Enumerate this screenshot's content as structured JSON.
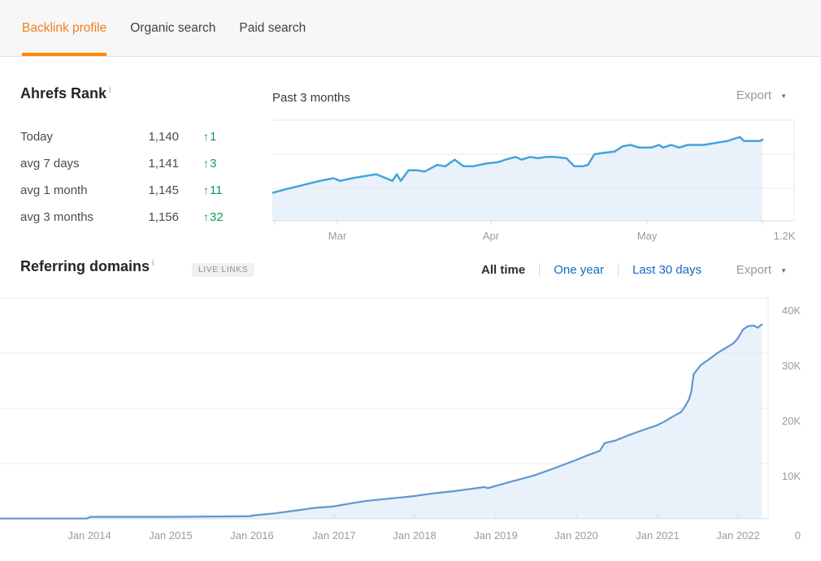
{
  "tabs": {
    "items": [
      {
        "label": "Backlink profile",
        "active": true
      },
      {
        "label": "Organic search",
        "active": false
      },
      {
        "label": "Paid search",
        "active": false
      }
    ]
  },
  "colors": {
    "accent_orange": "#ff8800",
    "active_tab_text": "#ef7f1a",
    "link_blue": "#1668c5",
    "positive_green": "#149a4e",
    "line_blue_small": "#44a3dd",
    "line_blue_large": "#6096d1",
    "area_fill": "#e9f1fa"
  },
  "ahrefs_rank": {
    "title": "Ahrefs Rank",
    "info_icon": "i",
    "rows": [
      {
        "label": "Today",
        "value": "1,140",
        "delta_arrow": "↑",
        "delta_value": "1"
      },
      {
        "label": "avg 7 days",
        "value": "1,141",
        "delta_arrow": "↑",
        "delta_value": "3"
      },
      {
        "label": "avg 1 month",
        "value": "1,145",
        "delta_arrow": "↑",
        "delta_value": "11"
      },
      {
        "label": "avg 3 months",
        "value": "1,156",
        "delta_arrow": "↑",
        "delta_value": "32"
      }
    ]
  },
  "rank_chart_header": {
    "title": "Past 3 months",
    "export_label": "Export",
    "export_caret": "▼"
  },
  "referring_domains": {
    "title": "Referring domains",
    "info_icon": "i",
    "badge": "LIVE LINKS",
    "filters": [
      {
        "label": "All time",
        "active": true
      },
      {
        "label": "One year",
        "active": false
      },
      {
        "label": "Last 30 days",
        "active": false
      }
    ],
    "export_label": "Export",
    "export_caret": "▼"
  },
  "chart_data": [
    {
      "type": "area",
      "title": "Past 3 months",
      "metric": "Ahrefs Rank (inverted axis, lower rank plotted higher)",
      "xtick_labels": [
        "Mar",
        "Apr",
        "May"
      ],
      "ytick_labels": [
        "1.2K"
      ],
      "ylim": [
        1125,
        1200
      ],
      "grid": true,
      "points_format": [
        "x_fraction_of_range",
        "rank"
      ],
      "points": [
        [
          0.0,
          1179
        ],
        [
          0.031,
          1176
        ],
        [
          0.064,
          1173
        ],
        [
          0.097,
          1170
        ],
        [
          0.125,
          1168
        ],
        [
          0.138,
          1170
        ],
        [
          0.163,
          1168
        ],
        [
          0.196,
          1166
        ],
        [
          0.212,
          1165
        ],
        [
          0.232,
          1168
        ],
        [
          0.245,
          1170
        ],
        [
          0.254,
          1165
        ],
        [
          0.262,
          1170
        ],
        [
          0.278,
          1162
        ],
        [
          0.295,
          1162
        ],
        [
          0.311,
          1163
        ],
        [
          0.336,
          1158
        ],
        [
          0.353,
          1159
        ],
        [
          0.372,
          1154
        ],
        [
          0.39,
          1159
        ],
        [
          0.41,
          1159
        ],
        [
          0.435,
          1157
        ],
        [
          0.46,
          1156
        ],
        [
          0.476,
          1154
        ],
        [
          0.496,
          1152
        ],
        [
          0.509,
          1154
        ],
        [
          0.526,
          1152
        ],
        [
          0.542,
          1153
        ],
        [
          0.558,
          1152
        ],
        [
          0.575,
          1152
        ],
        [
          0.6,
          1153
        ],
        [
          0.616,
          1159
        ],
        [
          0.633,
          1159
        ],
        [
          0.644,
          1158
        ],
        [
          0.657,
          1150
        ],
        [
          0.674,
          1149
        ],
        [
          0.698,
          1148
        ],
        [
          0.715,
          1144
        ],
        [
          0.731,
          1143
        ],
        [
          0.748,
          1145
        ],
        [
          0.773,
          1145
        ],
        [
          0.789,
          1143
        ],
        [
          0.797,
          1145
        ],
        [
          0.814,
          1143
        ],
        [
          0.83,
          1145
        ],
        [
          0.847,
          1143
        ],
        [
          0.863,
          1143
        ],
        [
          0.88,
          1143
        ],
        [
          0.896,
          1142
        ],
        [
          0.913,
          1141
        ],
        [
          0.929,
          1140
        ],
        [
          0.937,
          1139
        ],
        [
          0.954,
          1137
        ],
        [
          0.962,
          1140
        ],
        [
          0.978,
          1140
        ],
        [
          0.995,
          1140
        ],
        [
          1.0,
          1139
        ]
      ]
    },
    {
      "type": "area",
      "title": "Referring domains — All time",
      "xtick_labels": [
        "Jan 2014",
        "Jan 2015",
        "Jan 2016",
        "Jan 2017",
        "Jan 2018",
        "Jan 2019",
        "Jan 2020",
        "Jan 2021",
        "Jan 2022"
      ],
      "ytick_labels": [
        "40K",
        "30K",
        "20K",
        "10K",
        "0"
      ],
      "ylim": [
        0,
        40000
      ],
      "grid": true,
      "points_format": [
        "year_decimal",
        "referring_domains_thousands"
      ],
      "points": [
        [
          2012.9,
          0.05
        ],
        [
          2013.5,
          0.05
        ],
        [
          2013.97,
          0.05
        ],
        [
          2014.02,
          0.35
        ],
        [
          2015.0,
          0.35
        ],
        [
          2015.97,
          0.45
        ],
        [
          2016.02,
          0.6
        ],
        [
          2016.3,
          1.0
        ],
        [
          2016.6,
          1.6
        ],
        [
          2016.8,
          2.0
        ],
        [
          2017.0,
          2.2
        ],
        [
          2017.2,
          2.7
        ],
        [
          2017.4,
          3.2
        ],
        [
          2017.6,
          3.5
        ],
        [
          2017.8,
          3.8
        ],
        [
          2018.0,
          4.1
        ],
        [
          2018.25,
          4.6
        ],
        [
          2018.5,
          5.0
        ],
        [
          2018.7,
          5.4
        ],
        [
          2018.88,
          5.75
        ],
        [
          2018.92,
          5.55
        ],
        [
          2019.0,
          5.9
        ],
        [
          2019.25,
          6.9
        ],
        [
          2019.5,
          7.9
        ],
        [
          2019.75,
          9.2
        ],
        [
          2020.0,
          10.6
        ],
        [
          2020.15,
          11.5
        ],
        [
          2020.3,
          12.3
        ],
        [
          2020.36,
          13.7
        ],
        [
          2020.5,
          14.2
        ],
        [
          2020.65,
          15.1
        ],
        [
          2020.8,
          15.9
        ],
        [
          2020.9,
          16.4
        ],
        [
          2021.0,
          16.9
        ],
        [
          2021.1,
          17.6
        ],
        [
          2021.2,
          18.5
        ],
        [
          2021.3,
          19.3
        ],
        [
          2021.35,
          20.3
        ],
        [
          2021.4,
          21.6
        ],
        [
          2021.43,
          23.0
        ],
        [
          2021.46,
          26.2
        ],
        [
          2021.55,
          27.9
        ],
        [
          2021.65,
          28.9
        ],
        [
          2021.75,
          30.0
        ],
        [
          2021.85,
          30.9
        ],
        [
          2021.95,
          31.8
        ],
        [
          2022.0,
          32.6
        ],
        [
          2022.07,
          34.3
        ],
        [
          2022.13,
          34.9
        ],
        [
          2022.2,
          35.0
        ],
        [
          2022.25,
          34.6
        ],
        [
          2022.3,
          35.2
        ]
      ]
    }
  ]
}
